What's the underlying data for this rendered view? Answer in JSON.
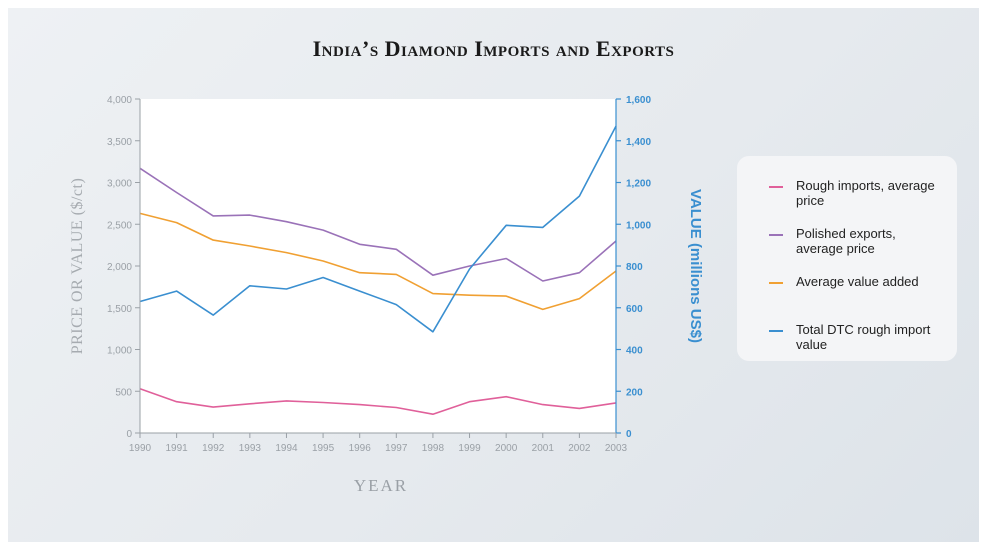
{
  "chart_data": {
    "type": "line",
    "title": "India’s Diamond Imports and Exports",
    "xlabel": "YEAR",
    "ylabel_left": "PRICE OR VALUE ($/ct)",
    "ylabel_right": "VALUE (millions US$)",
    "x": [
      1990,
      1991,
      1992,
      1993,
      1994,
      1995,
      1996,
      1997,
      1998,
      1999,
      2000,
      2001,
      2002,
      2003
    ],
    "x_tick_labels": [
      "1990",
      "1991",
      "1992",
      "1993",
      "1994",
      "1995",
      "1996",
      "1997",
      "1998",
      "1999",
      "2000",
      "2001",
      "2002",
      "2003"
    ],
    "ylim_left": [
      0,
      4000
    ],
    "ylim_right": [
      0,
      1600
    ],
    "y_ticks_left": [
      "0",
      "500",
      "1,000",
      "1,500",
      "2,000",
      "2,500",
      "3,000",
      "3,500",
      "4,000"
    ],
    "y_ticks_right": [
      "0",
      "200",
      "400",
      "600",
      "800",
      "1,000",
      "1,200",
      "1,400",
      "1,600"
    ],
    "grid": false,
    "legend_position": "right",
    "series": [
      {
        "name": "Rough imports, average price",
        "axis": "left",
        "color": "#e0609a",
        "values": [
          530,
          375,
          310,
          350,
          385,
          365,
          340,
          305,
          225,
          375,
          435,
          340,
          295,
          360
        ]
      },
      {
        "name": "Polished exports, average price",
        "axis": "left",
        "color": "#9a72b8",
        "values": [
          3170,
          2880,
          2600,
          2610,
          2530,
          2430,
          2260,
          2200,
          1890,
          2000,
          2090,
          1820,
          1920,
          2300
        ]
      },
      {
        "name": "Average value added",
        "axis": "left",
        "color": "#f0a032",
        "values": [
          2630,
          2520,
          2310,
          2240,
          2160,
          2060,
          1920,
          1900,
          1670,
          1650,
          1640,
          1480,
          1610,
          1940
        ]
      },
      {
        "name": "Total DTC rough import value",
        "axis": "right",
        "color": "#3a8fd0",
        "values": [
          630,
          680,
          565,
          705,
          690,
          745,
          680,
          615,
          485,
          785,
          995,
          985,
          1135,
          1470
        ]
      }
    ]
  }
}
